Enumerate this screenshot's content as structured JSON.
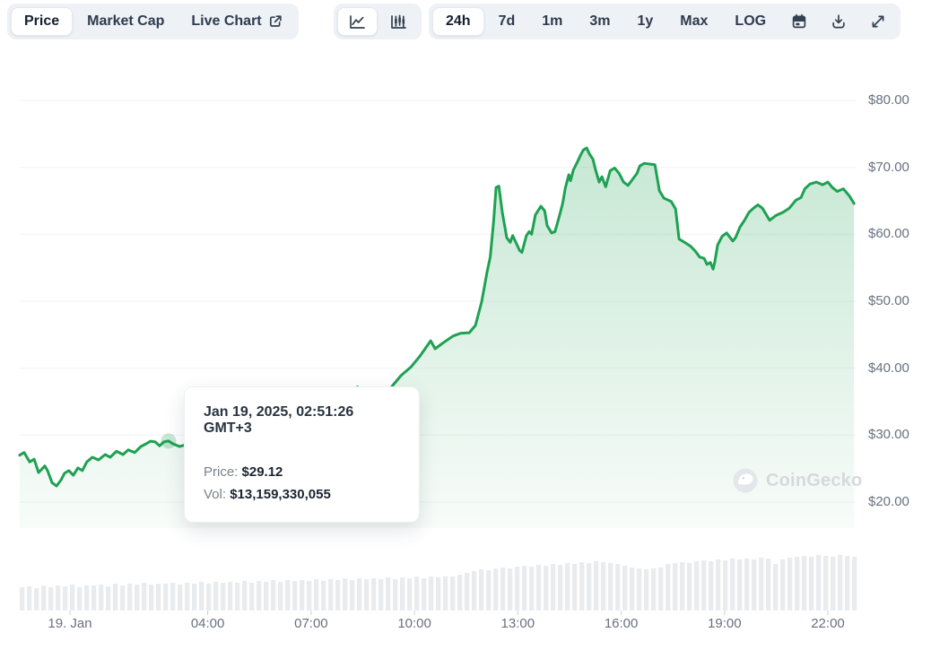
{
  "toolbar": {
    "metric_tabs": [
      {
        "label": "Price",
        "active": true
      },
      {
        "label": "Market Cap",
        "active": false
      },
      {
        "label": "Live Chart",
        "active": false,
        "icon": "external-link-icon"
      }
    ],
    "chart_type_toggle": [
      {
        "icon": "line-chart-icon",
        "active": true
      },
      {
        "icon": "candlestick-chart-icon",
        "active": false
      }
    ],
    "ranges": [
      {
        "label": "24h",
        "active": true
      },
      {
        "label": "7d",
        "active": false
      },
      {
        "label": "1m",
        "active": false
      },
      {
        "label": "3m",
        "active": false
      },
      {
        "label": "1y",
        "active": false
      },
      {
        "label": "Max",
        "active": false
      },
      {
        "label": "LOG",
        "active": false
      }
    ],
    "action_icons": [
      "calendar-icon",
      "download-icon",
      "fullscreen-icon"
    ]
  },
  "tooltip": {
    "title": "Jan 19, 2025, 02:51:26 GMT+3",
    "price_label": "Price:",
    "price_value": "$29.12",
    "vol_label": "Vol:",
    "vol_value": "$13,159,330,055"
  },
  "watermark": {
    "text": "CoinGecko",
    "icon": "gecko-logo-icon"
  },
  "chart_data": {
    "type": "area",
    "title": "Cryptocurrency price over 24h (USD)",
    "legend": "none",
    "grid": "horizontal",
    "y_axis": {
      "range": [
        20,
        80
      ],
      "ticks": [
        {
          "value": 80,
          "label": "$80.00"
        },
        {
          "value": 70,
          "label": "$70.00"
        },
        {
          "value": 60,
          "label": "$60.00"
        },
        {
          "value": 50,
          "label": "$50.00"
        },
        {
          "value": 40,
          "label": "$40.00"
        },
        {
          "value": 30,
          "label": "$30.00"
        },
        {
          "value": 20,
          "label": "$20.00"
        }
      ]
    },
    "x_axis": {
      "unit": "hours since Jan 19 2025 00:00 GMT+3",
      "range_hours": [
        -1.46,
        22.76
      ],
      "ticks": [
        {
          "hour": 0,
          "label": "19. Jan"
        },
        {
          "hour": 4,
          "label": "04:00"
        },
        {
          "hour": 7,
          "label": "07:00"
        },
        {
          "hour": 10,
          "label": "10:00"
        },
        {
          "hour": 13,
          "label": "13:00"
        },
        {
          "hour": 16,
          "label": "16:00"
        },
        {
          "hour": 19,
          "label": "19:00"
        },
        {
          "hour": 22,
          "label": "22:00"
        }
      ]
    },
    "series": {
      "name": "price_usd",
      "points": [
        [
          -1.46,
          27.0
        ],
        [
          -1.33,
          27.4
        ],
        [
          -1.17,
          26.0
        ],
        [
          -1.04,
          26.4
        ],
        [
          -0.91,
          24.4
        ],
        [
          -0.73,
          25.4
        ],
        [
          -0.65,
          24.7
        ],
        [
          -0.52,
          22.9
        ],
        [
          -0.39,
          22.4
        ],
        [
          -0.26,
          23.3
        ],
        [
          -0.16,
          24.3
        ],
        [
          -0.03,
          24.7
        ],
        [
          0.1,
          24.0
        ],
        [
          0.23,
          25.1
        ],
        [
          0.36,
          24.7
        ],
        [
          0.49,
          26.0
        ],
        [
          0.65,
          26.7
        ],
        [
          0.83,
          26.3
        ],
        [
          1.02,
          27.1
        ],
        [
          1.17,
          26.7
        ],
        [
          1.35,
          27.6
        ],
        [
          1.54,
          27.1
        ],
        [
          1.69,
          27.8
        ],
        [
          1.88,
          27.4
        ],
        [
          2.06,
          28.3
        ],
        [
          2.21,
          28.7
        ],
        [
          2.34,
          29.1
        ],
        [
          2.47,
          29.0
        ],
        [
          2.6,
          28.4
        ],
        [
          2.73,
          29.0
        ],
        [
          2.86,
          29.12
        ],
        [
          2.99,
          28.7
        ],
        [
          3.18,
          28.3
        ],
        [
          3.4,
          28.6
        ],
        [
          3.6,
          29.0
        ],
        [
          3.9,
          29.5
        ],
        [
          4.2,
          30.1
        ],
        [
          4.5,
          29.8
        ],
        [
          4.8,
          30.6
        ],
        [
          5.1,
          31.0
        ],
        [
          5.4,
          31.6
        ],
        [
          5.7,
          31.3
        ],
        [
          6.0,
          32.1
        ],
        [
          6.3,
          32.6
        ],
        [
          6.6,
          33.2
        ],
        [
          6.9,
          33.7
        ],
        [
          7.2,
          34.2
        ],
        [
          7.5,
          34.9
        ],
        [
          7.7,
          35.5
        ],
        [
          7.9,
          36.3
        ],
        [
          8.05,
          37.0
        ],
        [
          8.2,
          36.8
        ],
        [
          8.35,
          37.2
        ],
        [
          8.5,
          36.6
        ],
        [
          8.65,
          36.1
        ],
        [
          8.8,
          36.5
        ],
        [
          8.95,
          36.2
        ],
        [
          9.1,
          36.6
        ],
        [
          9.3,
          37.0
        ],
        [
          9.61,
          38.9
        ],
        [
          9.9,
          40.2
        ],
        [
          10.16,
          41.8
        ],
        [
          10.47,
          44.1
        ],
        [
          10.6,
          42.9
        ],
        [
          10.81,
          43.7
        ],
        [
          11.12,
          44.8
        ],
        [
          11.33,
          45.2
        ],
        [
          11.59,
          45.3
        ],
        [
          11.77,
          46.4
        ],
        [
          11.95,
          49.9
        ],
        [
          12.11,
          54.4
        ],
        [
          12.2,
          56.6
        ],
        [
          12.3,
          62.0
        ],
        [
          12.37,
          67.0
        ],
        [
          12.45,
          67.2
        ],
        [
          12.55,
          63.3
        ],
        [
          12.68,
          59.5
        ],
        [
          12.78,
          58.8
        ],
        [
          12.85,
          59.8
        ],
        [
          13.05,
          57.6
        ],
        [
          13.12,
          57.3
        ],
        [
          13.25,
          59.8
        ],
        [
          13.33,
          60.4
        ],
        [
          13.4,
          60.0
        ],
        [
          13.51,
          62.9
        ],
        [
          13.67,
          64.2
        ],
        [
          13.78,
          63.5
        ],
        [
          13.85,
          61.3
        ],
        [
          13.98,
          60.2
        ],
        [
          14.08,
          60.4
        ],
        [
          14.19,
          62.4
        ],
        [
          14.3,
          64.6
        ],
        [
          14.38,
          66.9
        ],
        [
          14.48,
          68.9
        ],
        [
          14.53,
          68.0
        ],
        [
          14.61,
          69.6
        ],
        [
          14.71,
          70.6
        ],
        [
          14.82,
          71.8
        ],
        [
          14.9,
          72.6
        ],
        [
          15.0,
          72.9
        ],
        [
          15.08,
          72.0
        ],
        [
          15.18,
          71.2
        ],
        [
          15.26,
          69.6
        ],
        [
          15.36,
          67.8
        ],
        [
          15.44,
          68.6
        ],
        [
          15.55,
          67.1
        ],
        [
          15.68,
          69.5
        ],
        [
          15.81,
          69.9
        ],
        [
          15.94,
          69.1
        ],
        [
          16.07,
          67.8
        ],
        [
          16.2,
          67.3
        ],
        [
          16.33,
          68.2
        ],
        [
          16.46,
          69.1
        ],
        [
          16.54,
          70.2
        ],
        [
          16.67,
          70.6
        ],
        [
          16.8,
          70.5
        ],
        [
          16.98,
          70.4
        ],
        [
          17.11,
          66.5
        ],
        [
          17.24,
          65.4
        ],
        [
          17.45,
          64.9
        ],
        [
          17.58,
          63.8
        ],
        [
          17.68,
          59.3
        ],
        [
          17.84,
          58.8
        ],
        [
          18.02,
          58.2
        ],
        [
          18.15,
          57.5
        ],
        [
          18.28,
          56.6
        ],
        [
          18.41,
          56.4
        ],
        [
          18.49,
          55.5
        ],
        [
          18.59,
          55.8
        ],
        [
          18.67,
          54.8
        ],
        [
          18.72,
          55.9
        ],
        [
          18.8,
          58.4
        ],
        [
          18.93,
          59.7
        ],
        [
          19.06,
          60.2
        ],
        [
          19.24,
          59.0
        ],
        [
          19.32,
          59.5
        ],
        [
          19.45,
          61.1
        ],
        [
          19.58,
          62.1
        ],
        [
          19.71,
          63.3
        ],
        [
          19.84,
          63.9
        ],
        [
          19.97,
          64.4
        ],
        [
          20.1,
          63.9
        ],
        [
          20.31,
          62.1
        ],
        [
          20.49,
          62.8
        ],
        [
          20.7,
          63.3
        ],
        [
          20.88,
          63.9
        ],
        [
          21.07,
          65.1
        ],
        [
          21.22,
          65.5
        ],
        [
          21.33,
          66.8
        ],
        [
          21.48,
          67.5
        ],
        [
          21.67,
          67.8
        ],
        [
          21.85,
          67.4
        ],
        [
          22.0,
          67.8
        ],
        [
          22.13,
          67.0
        ],
        [
          22.27,
          66.4
        ],
        [
          22.45,
          66.8
        ],
        [
          22.63,
          65.7
        ],
        [
          22.76,
          64.6
        ]
      ]
    },
    "marker": {
      "hour": 2.86,
      "price": 29.12
    },
    "volume": {
      "bars_relative_height": [
        26,
        27,
        25,
        28,
        26,
        28,
        27,
        29,
        26,
        28,
        28,
        29,
        27,
        30,
        28,
        30,
        29,
        31,
        29,
        30,
        30,
        31,
        29,
        31,
        30,
        32,
        30,
        32,
        31,
        32,
        31,
        33,
        31,
        33,
        32,
        34,
        32,
        34,
        33,
        34,
        33,
        35,
        33,
        35,
        34,
        36,
        34,
        36,
        35,
        36,
        35,
        37,
        35,
        37,
        36,
        38,
        36,
        38,
        37,
        38,
        38,
        40,
        42,
        44,
        46,
        45,
        47,
        48,
        47,
        49,
        50,
        49,
        51,
        50,
        52,
        51,
        53,
        52,
        54,
        53,
        55,
        54,
        53,
        52,
        50,
        48,
        47,
        46,
        47,
        48,
        52,
        53,
        54,
        53,
        55,
        56,
        55,
        57,
        56,
        58,
        57,
        58,
        57,
        59,
        58,
        52,
        57,
        59,
        60,
        61,
        60,
        62,
        61,
        60,
        62,
        61,
        60
      ]
    },
    "colors": {
      "line": "#1ea152",
      "area_top": "rgba(30,161,82,0.28)",
      "area_mid": "rgba(30,161,82,0.14)",
      "area_bottom": "rgba(30,161,82,0.03)",
      "marker_halo": "rgba(30,161,82,0.25)",
      "grid": "#f2f3f5",
      "volume_bar": "#e9ecef",
      "tick_mark": "#ccd3da"
    }
  }
}
